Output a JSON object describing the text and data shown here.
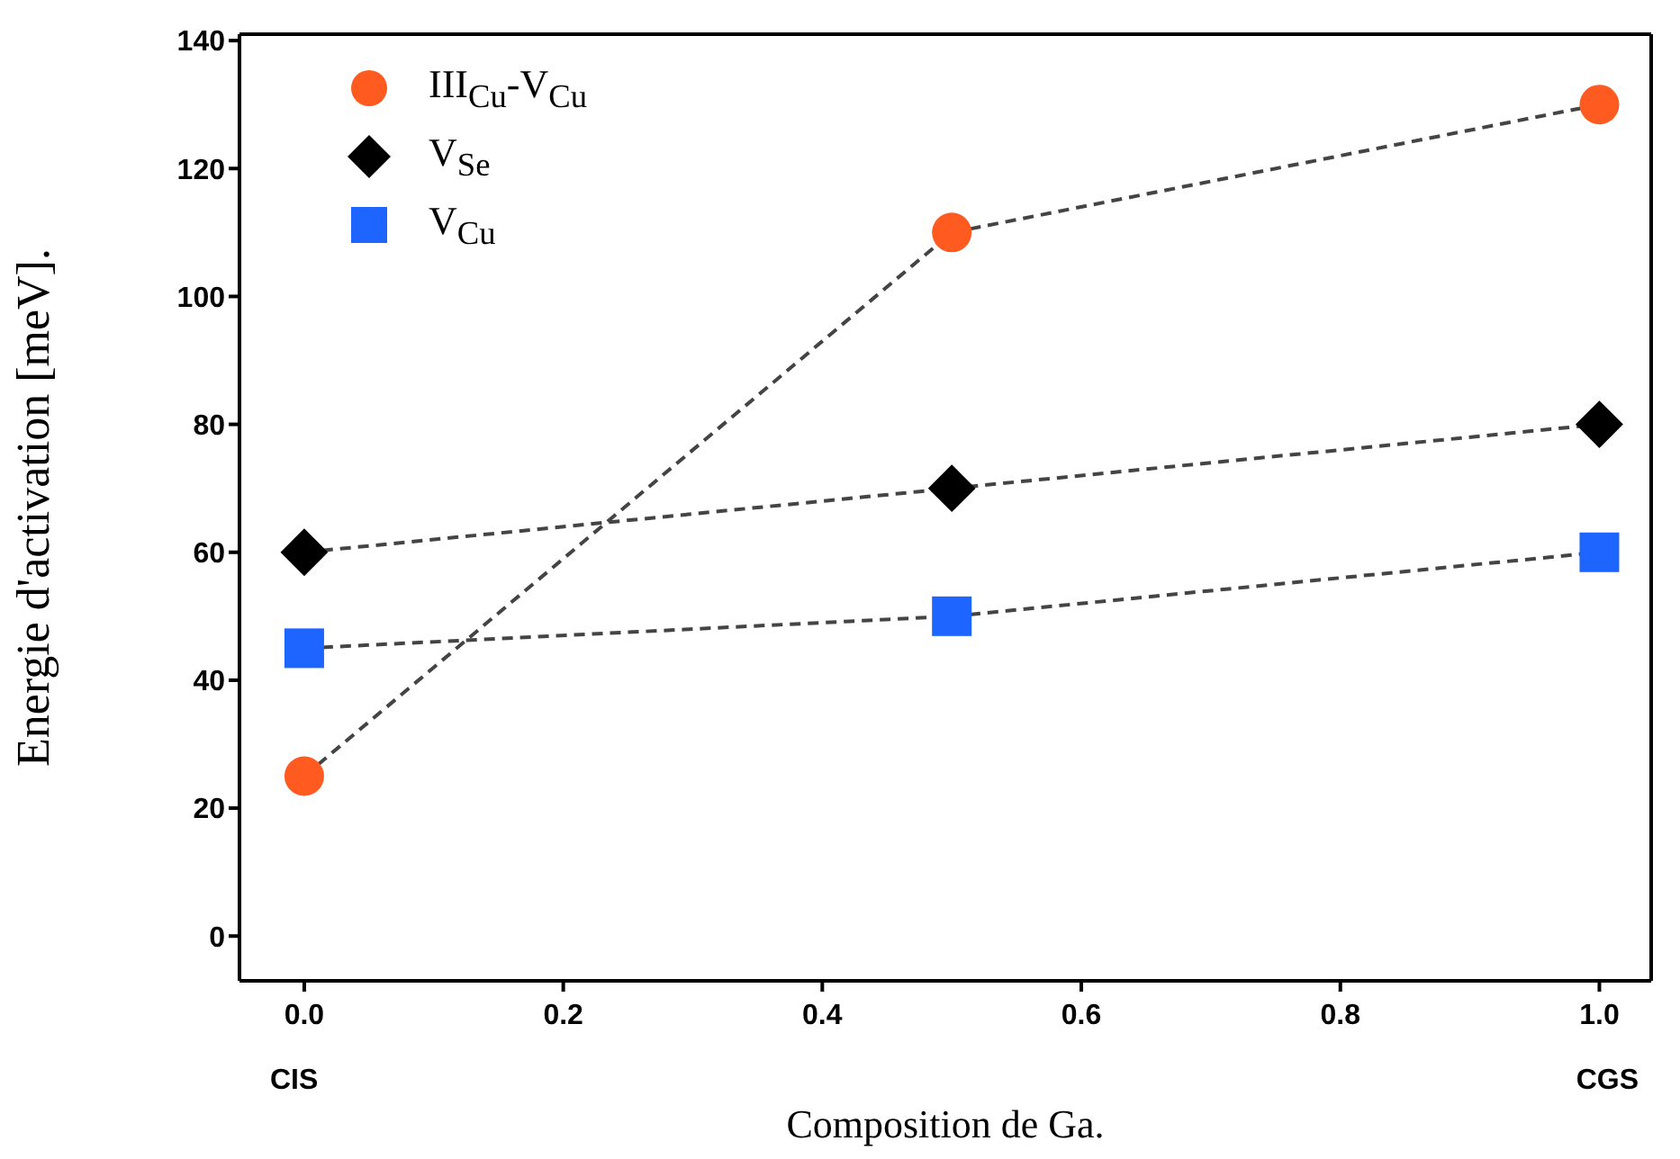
{
  "chart_data": {
    "type": "line",
    "xlabel": "Composition de Ga.",
    "ylabel": "Energie d'activation [meV].",
    "x": [
      0,
      0.5,
      1
    ],
    "series": [
      {
        "name": "III$_{Cu}$-V$_{Cu}$",
        "color": "#ff5a1f",
        "marker": "circle",
        "values": [
          25,
          110,
          130
        ]
      },
      {
        "name": "V$_{Se}$",
        "color": "#000000",
        "marker": "diamond",
        "values": [
          60,
          70,
          80
        ]
      },
      {
        "name": "V$_{Cu}$",
        "color": "#1e64ff",
        "marker": "square",
        "values": [
          45,
          50,
          60
        ]
      }
    ],
    "xlim": [
      -0.05,
      1.04
    ],
    "ylim": [
      -7,
      141
    ],
    "xticks": [
      {
        "value": 0,
        "label": "0.0"
      },
      {
        "value": 0.2,
        "label": "0.2"
      },
      {
        "value": 0.4,
        "label": "0.4"
      },
      {
        "value": 0.6,
        "label": "0.6"
      },
      {
        "value": 0.8,
        "label": "0.8"
      },
      {
        "value": 1,
        "label": "1.0"
      }
    ],
    "yticks": [
      0,
      20,
      40,
      60,
      80,
      100,
      120,
      140
    ],
    "annotations": [
      "CIS",
      "CGS"
    ],
    "line_style": "dashed",
    "grid": false,
    "legend": "top left"
  }
}
